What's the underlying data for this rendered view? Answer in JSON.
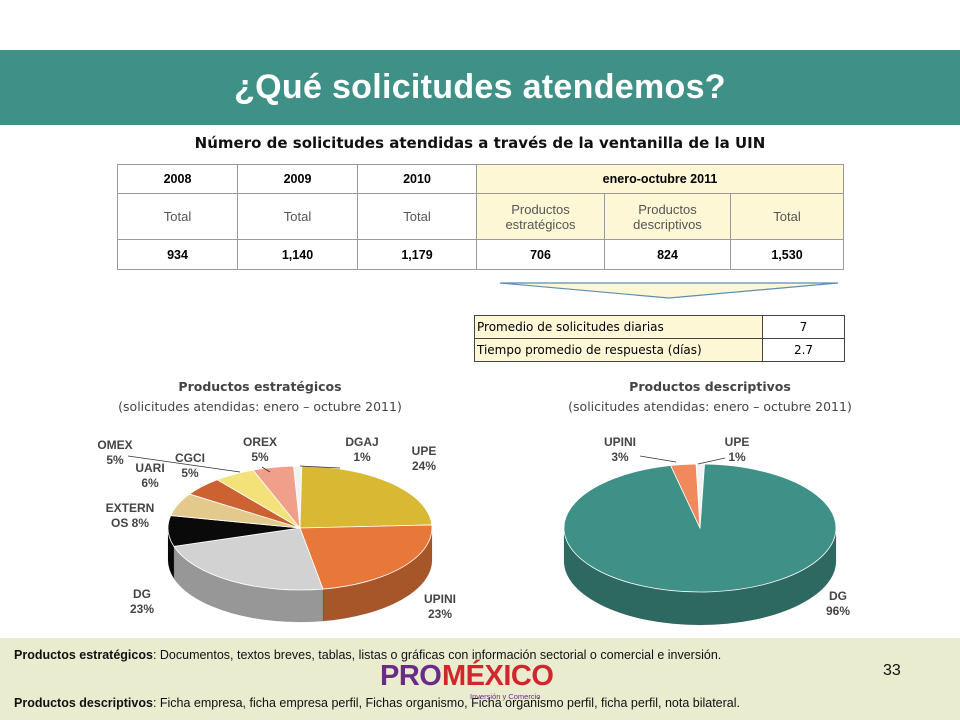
{
  "slide": {
    "title": "¿Qué solicitudes atendemos?",
    "subtitle": "Número de solicitudes atendidas a través de la ventanilla de la UIN",
    "page_number": "33"
  },
  "table": {
    "years": [
      "2008",
      "2009",
      "2010",
      "enero-octubre 2011"
    ],
    "subheaders": [
      "Total",
      "Total",
      "Total",
      "Productos estratégicos",
      "Productos descriptivos",
      "Total"
    ],
    "values": [
      "934",
      "1,140",
      "1,179",
      "706",
      "824",
      "1,530"
    ]
  },
  "stats": [
    {
      "label": "Promedio de solicitudes diarias",
      "value": "7"
    },
    {
      "label": "Tiempo promedio de respuesta (días)",
      "value": "2.7"
    }
  ],
  "charts": {
    "strategic": {
      "title": "Productos estratégicos",
      "subtitle": "(solicitudes atendidas: enero – octubre 2011)"
    },
    "descriptive": {
      "title": "Productos descriptivos",
      "subtitle": "(solicitudes atendidas: enero – octubre 2011)"
    }
  },
  "chart_data": [
    {
      "type": "pie",
      "title": "Productos estratégicos",
      "subtitle": "(solicitudes atendidas: enero – octubre 2011)",
      "slices": [
        {
          "label": "DGAJ",
          "pct": "1%",
          "value": 1,
          "color": "#f2f2f2"
        },
        {
          "label": "UPE",
          "pct": "24%",
          "value": 24,
          "color": "#d9b933"
        },
        {
          "label": "UPINI",
          "pct": "23%",
          "value": 23,
          "color": "#e8773a"
        },
        {
          "label": "DG",
          "pct": "23%",
          "value": 23,
          "color": "#d2d2d2"
        },
        {
          "label": "EXTERN OS",
          "pct": "8%",
          "value": 8,
          "color": "#0a0a0a"
        },
        {
          "label": "UARI",
          "pct": "6%",
          "value": 6,
          "color": "#e3c98c"
        },
        {
          "label": "OMEX",
          "pct": "5%",
          "value": 5,
          "color": "#cc6232"
        },
        {
          "label": "CGCI",
          "pct": "5%",
          "value": 5,
          "color": "#f3e27a"
        },
        {
          "label": "OREX",
          "pct": "5%",
          "value": 5,
          "color": "#f0a08a"
        }
      ]
    },
    {
      "type": "pie",
      "title": "Productos descriptivos",
      "subtitle": "(solicitudes atendidas: enero – octubre 2011)",
      "slices": [
        {
          "label": "UPE",
          "pct": "1%",
          "value": 1,
          "color": "#f2f2f2"
        },
        {
          "label": "DG",
          "pct": "96%",
          "value": 96,
          "color": "#3f9187"
        },
        {
          "label": "UPINI",
          "pct": "3%",
          "value": 3,
          "color": "#f08a5d"
        }
      ]
    }
  ],
  "footer": {
    "strategic_label": "Productos estratégicos",
    "strategic_text": ": Documentos, textos breves, tablas, listas o gráficas con información sectorial o comercial e inversión.",
    "descriptive_label": "Productos descriptivos",
    "descriptive_text": ": Ficha empresa, ficha empresa perfil, Fichas organismo, Ficha organismo perfil, ficha perfil, nota bilateral.",
    "logo_pro": "PRO",
    "logo_mexico": "MÉXICO",
    "logo_tagline": "Inversión y Comercio"
  }
}
